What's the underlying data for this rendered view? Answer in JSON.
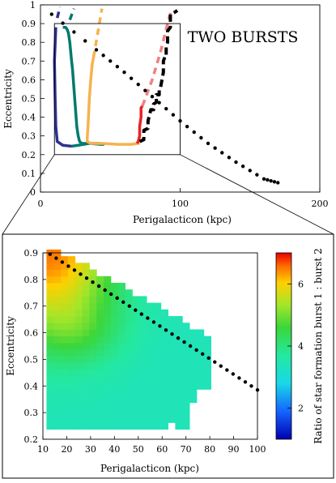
{
  "chart_data": [
    {
      "id": "top",
      "type": "line",
      "title": "TWO BURSTS",
      "xlabel": "Perigalacticon (kpc)",
      "ylabel": "Eccentricity",
      "xlim": [
        0,
        200
      ],
      "ylim": [
        0,
        1
      ],
      "xticks": [
        0,
        100,
        200
      ],
      "yticks": [
        0,
        0.1,
        0.2,
        0.3,
        0.4,
        0.5,
        0.6,
        0.7,
        0.8,
        0.9,
        1
      ],
      "zoom_box": {
        "x": [
          10,
          100
        ],
        "y": [
          0.2,
          0.9
        ]
      },
      "series": [
        {
          "color": "#2e3192",
          "style": "solid",
          "x": [
            11,
            10,
            10.5,
            11,
            12,
            16,
            22,
            22.5
          ],
          "y": [
            0.88,
            0.7,
            0.5,
            0.35,
            0.27,
            0.25,
            0.245,
            0.245
          ]
        },
        {
          "color": "#2e3192",
          "style": "dashed",
          "x": [
            12,
            14
          ],
          "y": [
            0.93,
            0.99
          ]
        },
        {
          "color": "#007a6e",
          "style": "solid",
          "x": [
            22.5,
            27,
            35,
            43,
            45,
            44,
            42,
            41,
            40,
            38,
            37,
            35,
            34,
            33,
            32,
            31,
            30,
            29.5,
            28,
            27,
            26,
            25,
            24,
            23,
            22,
            21,
            20,
            19,
            18,
            17,
            16
          ],
          "y": [
            0.245,
            0.25,
            0.26,
            0.255,
            0.255,
            0.255,
            0.26,
            0.26,
            0.26,
            0.26,
            0.26,
            0.26,
            0.26,
            0.26,
            0.26,
            0.26,
            0.26,
            0.26,
            0.27,
            0.3,
            0.35,
            0.45,
            0.55,
            0.65,
            0.72,
            0.8,
            0.85,
            0.87,
            0.88,
            0.88,
            0.88
          ]
        },
        {
          "color": "#007a6e",
          "style": "dashed",
          "x": [
            21,
            24
          ],
          "y": [
            0.92,
            0.98
          ]
        },
        {
          "color": "#f7b24d",
          "style": "solid",
          "x": [
            38,
            37,
            36,
            35,
            34.5,
            34,
            33.5,
            33.5,
            36,
            44,
            55,
            65,
            70,
            71
          ],
          "y": [
            0.72,
            0.68,
            0.6,
            0.5,
            0.42,
            0.35,
            0.29,
            0.27,
            0.26,
            0.26,
            0.255,
            0.255,
            0.26,
            0.26
          ]
        },
        {
          "color": "#f7b24d",
          "style": "dashed",
          "x": [
            38,
            44
          ],
          "y": [
            0.72,
            0.98
          ]
        },
        {
          "color": "#e82225",
          "style": "solid",
          "x": [
            69,
            70,
            71,
            71,
            72,
            72,
            73
          ],
          "y": [
            0.26,
            0.27,
            0.3,
            0.35,
            0.4,
            0.45,
            0.46
          ]
        },
        {
          "color": "#f08080",
          "style": "dashed",
          "x": [
            73,
            80,
            86,
            91,
            94
          ],
          "y": [
            0.46,
            0.6,
            0.75,
            0.9,
            0.98
          ]
        },
        {
          "color": "#000000",
          "style": "dashed",
          "x": [
            71,
            74,
            74,
            77,
            77,
            78,
            79,
            81,
            81,
            83,
            83,
            85,
            85,
            86,
            87,
            88,
            88,
            89,
            90,
            90,
            91,
            91,
            93,
            93,
            96,
            98
          ],
          "y": [
            0.27,
            0.28,
            0.33,
            0.34,
            0.38,
            0.41,
            0.44,
            0.44,
            0.47,
            0.48,
            0.52,
            0.52,
            0.55,
            0.56,
            0.6,
            0.64,
            0.7,
            0.72,
            0.72,
            0.78,
            0.8,
            0.86,
            0.88,
            0.95,
            0.96,
            0.97
          ]
        },
        {
          "color": "#000000",
          "style": "dotted",
          "x": [
            8,
            40,
            60,
            80,
            100,
            120,
            140,
            160,
            170
          ],
          "y": [
            0.95,
            0.76,
            0.64,
            0.51,
            0.38,
            0.26,
            0.16,
            0.07,
            0.05
          ]
        }
      ]
    },
    {
      "id": "bottom",
      "type": "heatmap",
      "xlabel": "Perigalacticon (kpc)",
      "ylabel": "Eccentricity",
      "xlim": [
        10,
        100
      ],
      "ylim": [
        0.2,
        0.9
      ],
      "xticks": [
        10,
        20,
        30,
        40,
        50,
        60,
        70,
        80,
        90,
        100
      ],
      "yticks": [
        0.2,
        0.3,
        0.4,
        0.5,
        0.6,
        0.7,
        0.8,
        0.9
      ],
      "colorbar": {
        "label": "Ratio of star formation burst 1 : burst 2",
        "ticks": [
          2,
          4,
          6
        ],
        "range": [
          1,
          7
        ]
      },
      "cells": {
        "dx": 3,
        "dy": 0.025,
        "x0": 13,
        "y0": 0.25,
        "cols_max_y": [
          0.9,
          0.9,
          0.875,
          0.875,
          0.85,
          0.85,
          0.825,
          0.8,
          0.8,
          0.775,
          0.775,
          0.75,
          0.725,
          0.725,
          0.7,
          0.7,
          0.675,
          0.65,
          0.65,
          0.625,
          0.6,
          0.6,
          0.575
        ],
        "cols_min_y": [
          0.25,
          0.25,
          0.25,
          0.25,
          0.25,
          0.25,
          0.25,
          0.25,
          0.25,
          0.25,
          0.25,
          0.25,
          0.25,
          0.25,
          0.25,
          0.25,
          0.25,
          0.275,
          0.25,
          0.25,
          0.35,
          0.4,
          0.4
        ],
        "value_peak": 6.5,
        "value_base": 3.4
      },
      "dotted_line": {
        "x": [
          13,
          100
        ],
        "y": [
          0.895,
          0.385
        ]
      }
    }
  ],
  "colors": {
    "zoom_frame": "#000000",
    "background": "#ffffff"
  }
}
